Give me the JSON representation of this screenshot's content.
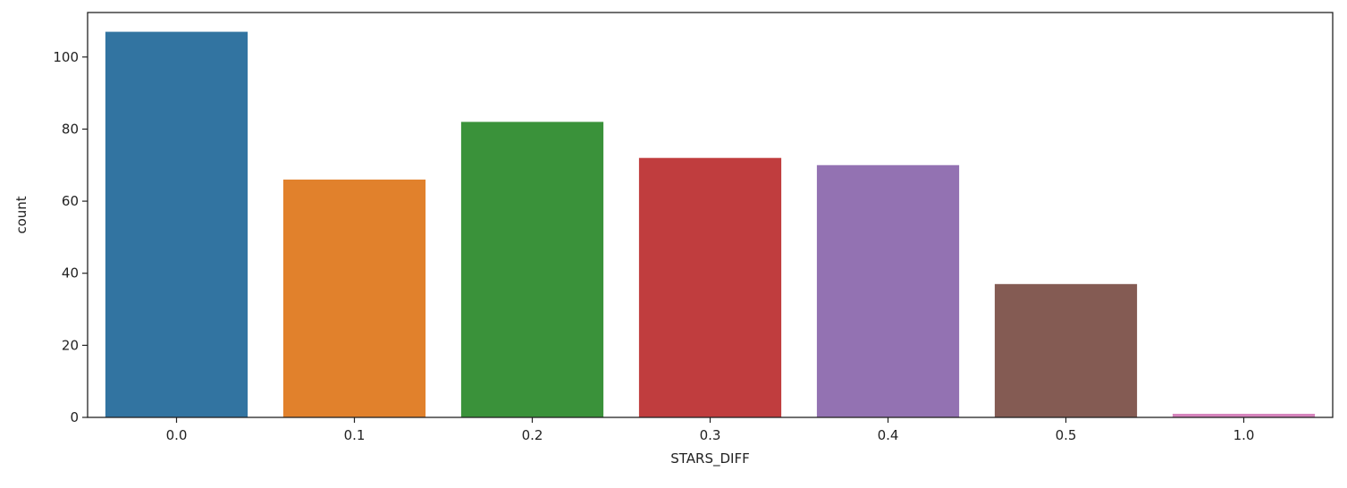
{
  "chart_data": {
    "type": "bar",
    "title": "",
    "xlabel": "STARS_DIFF",
    "ylabel": "count",
    "categories": [
      "0.0",
      "0.1",
      "0.2",
      "0.3",
      "0.4",
      "0.5",
      "1.0"
    ],
    "values": [
      107,
      66,
      82,
      72,
      70,
      37,
      1
    ],
    "ylim": [
      0,
      112.35
    ],
    "yticks": [
      0,
      20,
      40,
      60,
      80,
      100
    ],
    "colors": [
      "#3274a1",
      "#e1812c",
      "#3a923a",
      "#c03d3e",
      "#9372b2",
      "#845b53",
      "#d684bd"
    ],
    "grid": false,
    "legend": "none"
  }
}
